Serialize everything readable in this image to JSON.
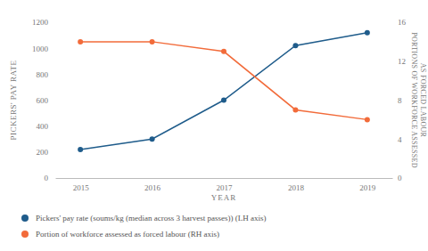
{
  "chart_data": {
    "type": "line",
    "x_label": "YEAR",
    "y_label": "PICKERS' PAY RATE",
    "y2_label": [
      "PORTIONS OF WORKFORCE ASSESSED",
      "AS FORCED LABOUR"
    ],
    "categories": [
      "2015",
      "2016",
      "2017",
      "2018",
      "2019"
    ],
    "ylim": [
      0,
      1200
    ],
    "yticks": [
      0,
      200,
      400,
      600,
      800,
      1000,
      1200
    ],
    "y2lim": [
      0,
      16
    ],
    "y2ticks": [
      0,
      4,
      8,
      12,
      16
    ],
    "grid": false,
    "legend": "bottom",
    "series": [
      {
        "name": "Pickers' pay rate (soums/kg (median across 3 harvest passes)) (LH axis)",
        "color": "#1f5c8b",
        "marker": "circle",
        "values": [
          220,
          300,
          600,
          1020,
          1120
        ]
      },
      {
        "name": "Portion of workforce assessed as forced labour (RH axis)",
        "color": "#f26b3a",
        "marker": "circle",
        "axis": "y2",
        "values": [
          14,
          14,
          13,
          7,
          6
        ]
      }
    ]
  }
}
